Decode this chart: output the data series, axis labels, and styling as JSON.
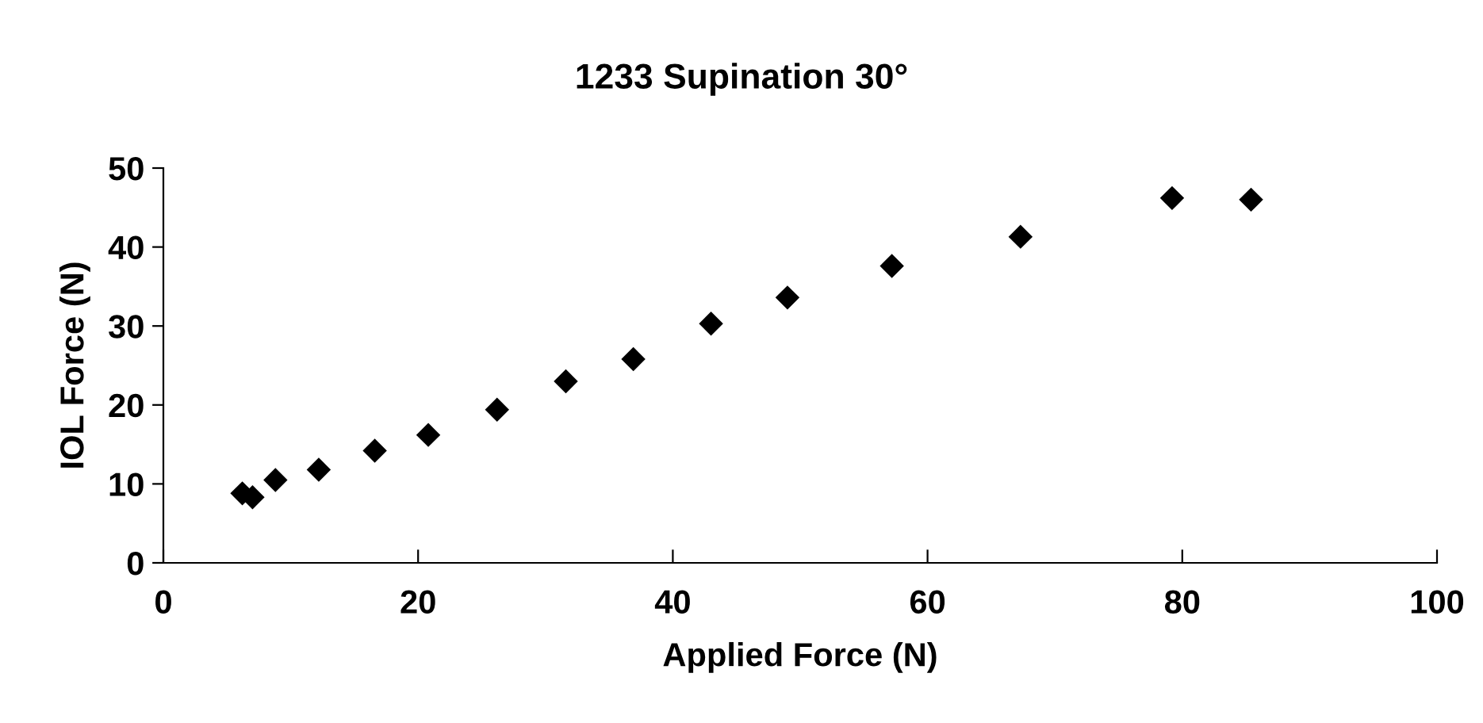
{
  "chart_data": {
    "type": "scatter",
    "title": "1233 Supination 30°",
    "xlabel": "Applied Force (N)",
    "ylabel": "IOL Force (N)",
    "x": [
      6.2,
      7.0,
      8.8,
      12.2,
      16.6,
      20.8,
      26.2,
      31.6,
      36.9,
      43.0,
      49.0,
      57.2,
      67.3,
      79.2,
      85.4
    ],
    "series": [
      {
        "color": "#000000",
        "values": [
          8.8,
          8.3,
          10.5,
          11.8,
          14.2,
          16.2,
          19.4,
          23.0,
          25.8,
          30.3,
          33.6,
          37.6,
          41.3,
          46.2,
          46.0
        ]
      }
    ],
    "xlim": [
      0,
      100
    ],
    "xticks": [
      0,
      20,
      40,
      60,
      80,
      100
    ],
    "ylim": [
      0,
      50
    ],
    "yticks": [
      0,
      10,
      20,
      30,
      40,
      50
    ],
    "marker": "diamond",
    "grid": false,
    "legend": false
  }
}
